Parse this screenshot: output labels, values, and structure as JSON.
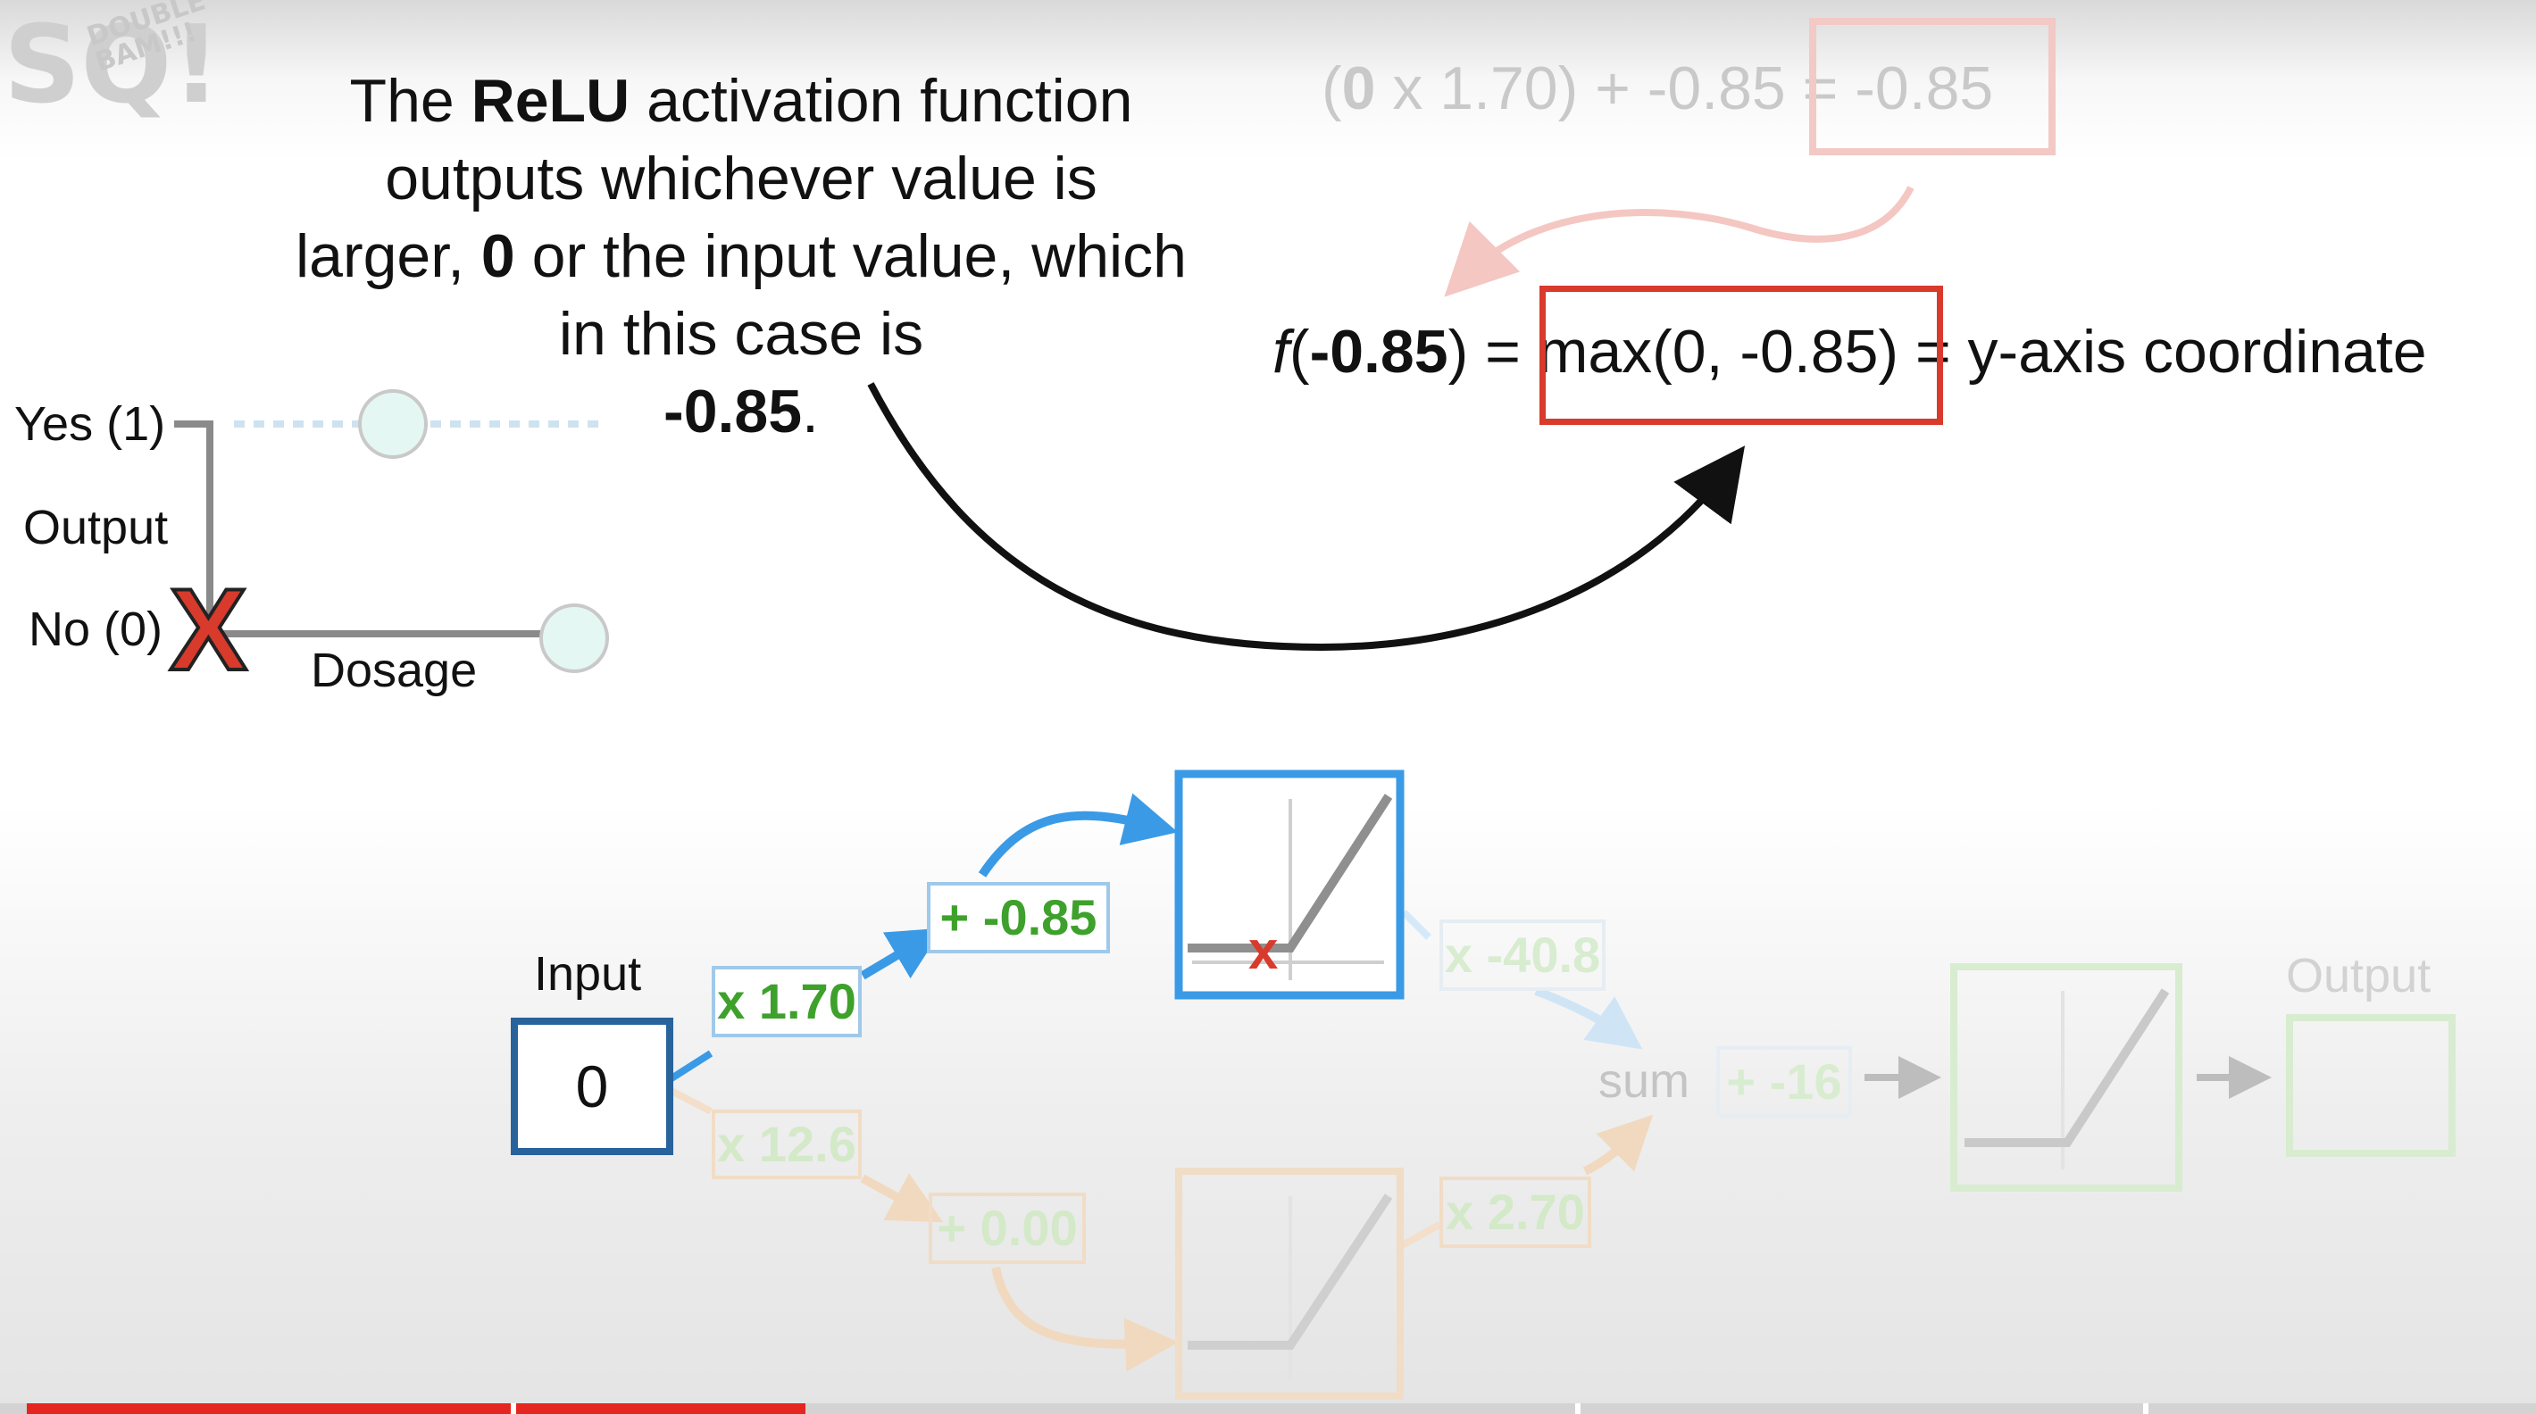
{
  "logo": {
    "big": "SQ!",
    "small": "DOUBLE BAM!!!"
  },
  "caption": {
    "part1": "The ",
    "bold1": "ReLU",
    "part2": " activation function outputs whichever value is larger, ",
    "bold2": "0",
    "part3": " or the input value, which in this case is ",
    "bold3": "-0.85",
    "part4": "."
  },
  "faded_equation": {
    "open": "(",
    "zero": "0",
    "rest": " x 1.70) + -0.85 ",
    "result": "= -0.85"
  },
  "equation": {
    "f": "f",
    "open": "(",
    "arg": "-0.85",
    "close": ") = ",
    "max": "max(0, -0.85)",
    "tail": " = y-axis coordinate"
  },
  "mini_graph": {
    "yes": "Yes (1)",
    "output": "Output",
    "no": "No (0)",
    "dosage": "Dosage",
    "x_mark": "X"
  },
  "network": {
    "input_label": "Input",
    "input_value": "0",
    "w_top": "x 1.70",
    "b_top": "+ -0.85",
    "w_top_out": "x -40.8",
    "w_bottom": "x 12.6",
    "b_bottom": "+ 0.00",
    "w_bottom_out": "x 2.70",
    "sum_label": "sum",
    "final_bias": "+ -16",
    "output_label": "Output",
    "relu_x_mark": "x"
  },
  "colors": {
    "accent_red": "#d83a2c",
    "blue_arrow": "#3a9ae6",
    "input_border": "#28639c",
    "green_text": "#3ea12c",
    "progress_played": "#e52620"
  },
  "video": {
    "progress": 0.307
  }
}
